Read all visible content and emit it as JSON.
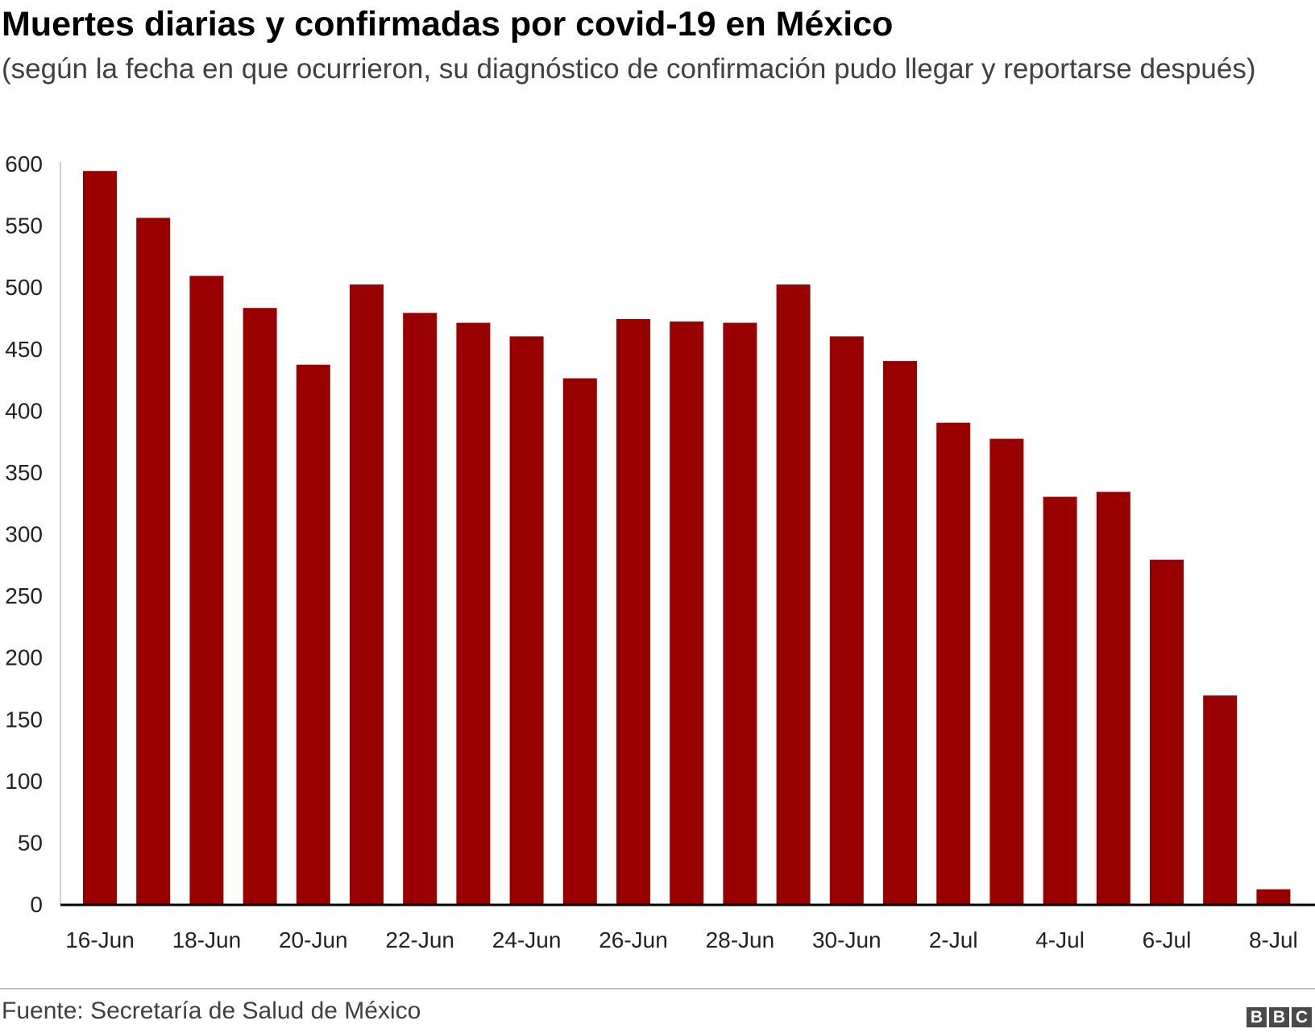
{
  "header": {
    "title": "Muertes diarias y confirmadas por covid-19 en México",
    "subtitle": "(según la fecha en que ocurrieron, su diagnóstico de confirmación pudo llegar y reportarse después)"
  },
  "footer": {
    "source": "Fuente: Secretaría de Salud de México",
    "logo_letters": [
      "B",
      "B",
      "C"
    ]
  },
  "chart_data": {
    "type": "bar",
    "title": "Muertes diarias y confirmadas por covid-19 en México",
    "subtitle": "(según la fecha en que ocurrieron, su diagnóstico de confirmación pudo llegar y reportarse después)",
    "categories": [
      "16-Jun",
      "17-Jun",
      "18-Jun",
      "19-Jun",
      "20-Jun",
      "21-Jun",
      "22-Jun",
      "23-Jun",
      "24-Jun",
      "25-Jun",
      "26-Jun",
      "27-Jun",
      "28-Jun",
      "29-Jun",
      "30-Jun",
      "1-Jul",
      "2-Jul",
      "3-Jul",
      "4-Jul",
      "5-Jul",
      "6-Jul",
      "7-Jul",
      "8-Jul"
    ],
    "values": [
      594,
      556,
      509,
      483,
      437,
      502,
      479,
      471,
      460,
      426,
      474,
      472,
      471,
      502,
      460,
      440,
      390,
      377,
      330,
      334,
      279,
      169,
      12
    ],
    "x_tick_labels": [
      "16-Jun",
      "18-Jun",
      "20-Jun",
      "22-Jun",
      "24-Jun",
      "26-Jun",
      "28-Jun",
      "30-Jun",
      "2-Jul",
      "4-Jul",
      "6-Jul",
      "8-Jul"
    ],
    "y_ticks": [
      0,
      50,
      100,
      150,
      200,
      250,
      300,
      350,
      400,
      450,
      500,
      550,
      600
    ],
    "ylim": [
      0,
      600
    ],
    "xlabel": "",
    "ylabel": "",
    "grid": false,
    "bar_color": "#990000",
    "axis_color": "#000000"
  }
}
